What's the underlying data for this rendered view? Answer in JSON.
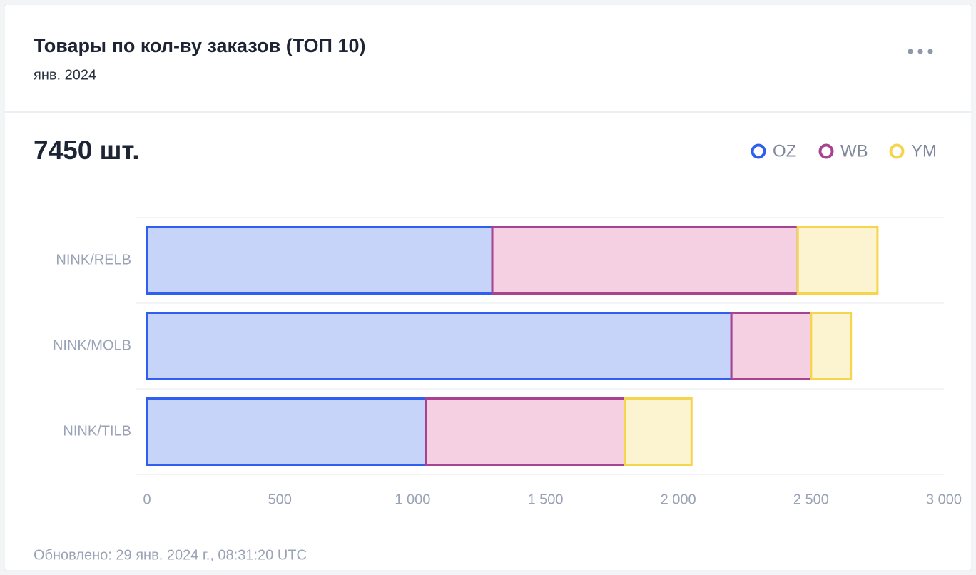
{
  "header": {
    "title": "Товары по кол-ву заказов (ТОП 10)",
    "subtitle": "янв. 2024",
    "total": "7450 шт."
  },
  "chart_data": {
    "type": "stacked-bar-horizontal",
    "categories": [
      "NINK/RELB",
      "NINK/MOLB",
      "NINK/TILB"
    ],
    "series": [
      {
        "name": "OZ",
        "color": "#2f5ef0",
        "fill": "#c6d4fa",
        "values": [
          1300,
          2200,
          1050
        ]
      },
      {
        "name": "WB",
        "color": "#a8448f",
        "fill": "#f5d0e3",
        "values": [
          1150,
          300,
          750
        ]
      },
      {
        "name": "YM",
        "color": "#f5d54e",
        "fill": "#fcf3d0",
        "values": [
          300,
          150,
          250
        ]
      }
    ],
    "xlim": [
      0,
      3000
    ],
    "xticks": [
      0,
      500,
      {
        "value": 1000,
        "label": "1 000"
      },
      {
        "value": 1500,
        "label": "1 500"
      },
      {
        "value": 2000,
        "label": "2 000"
      },
      {
        "value": 2500,
        "label": "2 500"
      },
      {
        "value": 3000,
        "label": "3 000"
      }
    ],
    "legend": "top-right"
  },
  "footer": {
    "updated": "Обновлено: 29 янв. 2024 г., 08:31:20 UTC"
  }
}
